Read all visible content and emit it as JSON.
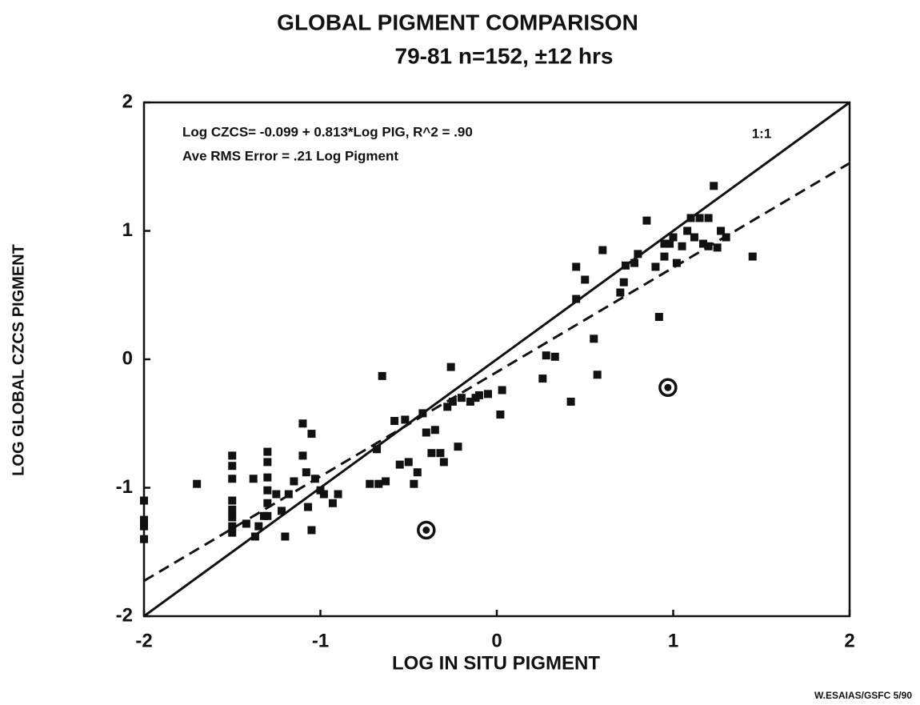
{
  "chart_data": {
    "type": "scatter",
    "title": "GLOBAL PIGMENT COMPARISON",
    "subtitle": "79-81 n=152, ±12 hrs",
    "x_label": "LOG IN SITU PIGMENT",
    "y_label": "LOG GLOBAL CZCS PIGMENT",
    "annotations": [
      "Log CZCS= -0.099 + 0.813*Log PIG,  R^2 = .90",
      "Ave RMS Error = .21 Log Pigment"
    ],
    "credit": "W.ESAIAS/GSFC 5/90",
    "xlim": [
      -2,
      2
    ],
    "ylim": [
      -2,
      2
    ],
    "xticks": [
      -2,
      -1,
      0,
      1,
      2
    ],
    "yticks": [
      -2,
      -1,
      0,
      1,
      2
    ],
    "grid": false,
    "series": [
      {
        "color": "#111111",
        "marker": "square",
        "x": [
          -2,
          -2,
          -2,
          -2,
          -1.7,
          -1.5,
          -1.5,
          -1.5,
          -1.5,
          -1.5,
          -1.5,
          -1.5,
          -1.5,
          -1.42,
          -1.38,
          -1.37,
          -1.35,
          -1.32,
          -1.3,
          -1.3,
          -1.3,
          -1.3,
          -1.3,
          -1.3,
          -1.25,
          -1.22,
          -1.2,
          -1.18,
          -1.15,
          -1.1,
          -1.1,
          -1.08,
          -1.07,
          -1.05,
          -1.05,
          -1.03,
          -1.0,
          -0.98,
          -0.93,
          -0.9,
          -0.72,
          -0.68,
          -0.67,
          -0.65,
          -0.63,
          -0.58,
          -0.55,
          -0.52,
          -0.5,
          -0.47,
          -0.45,
          -0.42,
          -0.4,
          -0.37,
          -0.35,
          -0.32,
          -0.3,
          -0.28,
          -0.26,
          -0.25,
          -0.22,
          -0.2,
          -0.15,
          -0.12,
          -0.1,
          -0.05,
          0.02,
          0.03,
          0.26,
          0.28,
          0.33,
          0.42,
          0.45,
          0.45,
          0.5,
          0.55,
          0.57,
          0.6,
          0.7,
          0.72,
          0.73,
          0.78,
          0.8,
          0.85,
          0.9,
          0.92,
          0.95,
          0.95,
          0.98,
          1.0,
          1.02,
          1.05,
          1.08,
          1.1,
          1.12,
          1.15,
          1.17,
          1.2,
          1.2,
          1.23,
          1.25,
          1.27,
          1.3,
          1.45
        ],
        "values": [
          -1.1,
          -1.25,
          -1.3,
          -1.4,
          -0.97,
          -0.75,
          -0.83,
          -0.93,
          -1.1,
          -1.17,
          -1.23,
          -1.3,
          -1.35,
          -1.28,
          -0.93,
          -1.38,
          -1.3,
          -1.22,
          -0.72,
          -0.8,
          -0.92,
          -1.02,
          -1.12,
          -1.22,
          -1.05,
          -1.18,
          -1.38,
          -1.05,
          -0.95,
          -0.5,
          -0.75,
          -0.88,
          -1.15,
          -0.58,
          -1.33,
          -0.93,
          -1.02,
          -1.05,
          -1.12,
          -1.05,
          -0.97,
          -0.7,
          -0.97,
          -0.13,
          -0.95,
          -0.48,
          -0.82,
          -0.47,
          -0.8,
          -0.97,
          -0.88,
          -0.42,
          -0.57,
          -0.73,
          -0.55,
          -0.73,
          -0.8,
          -0.37,
          -0.06,
          -0.33,
          -0.68,
          -0.3,
          -0.33,
          -0.3,
          -0.28,
          -0.27,
          -0.43,
          -0.24,
          -0.15,
          0.03,
          0.02,
          -0.33,
          0.47,
          0.72,
          0.62,
          0.16,
          -0.12,
          0.85,
          0.52,
          0.6,
          0.73,
          0.75,
          0.82,
          1.08,
          0.72,
          0.33,
          0.8,
          0.9,
          0.9,
          0.95,
          0.75,
          0.88,
          1.0,
          1.1,
          0.95,
          1.1,
          0.9,
          1.1,
          0.88,
          1.35,
          0.87,
          1.0,
          0.95,
          0.8
        ]
      },
      {
        "color": "#111111",
        "marker": "circled",
        "x": [
          -0.4,
          0.97
        ],
        "values": [
          -1.33,
          -0.22
        ]
      }
    ],
    "lines": [
      {
        "label": "1:1",
        "style": "solid",
        "x": [
          -2,
          2
        ],
        "y": [
          -2,
          2
        ]
      },
      {
        "style": "dashed",
        "x": [
          -2,
          2
        ],
        "y": [
          -1.725,
          1.527
        ]
      }
    ]
  }
}
